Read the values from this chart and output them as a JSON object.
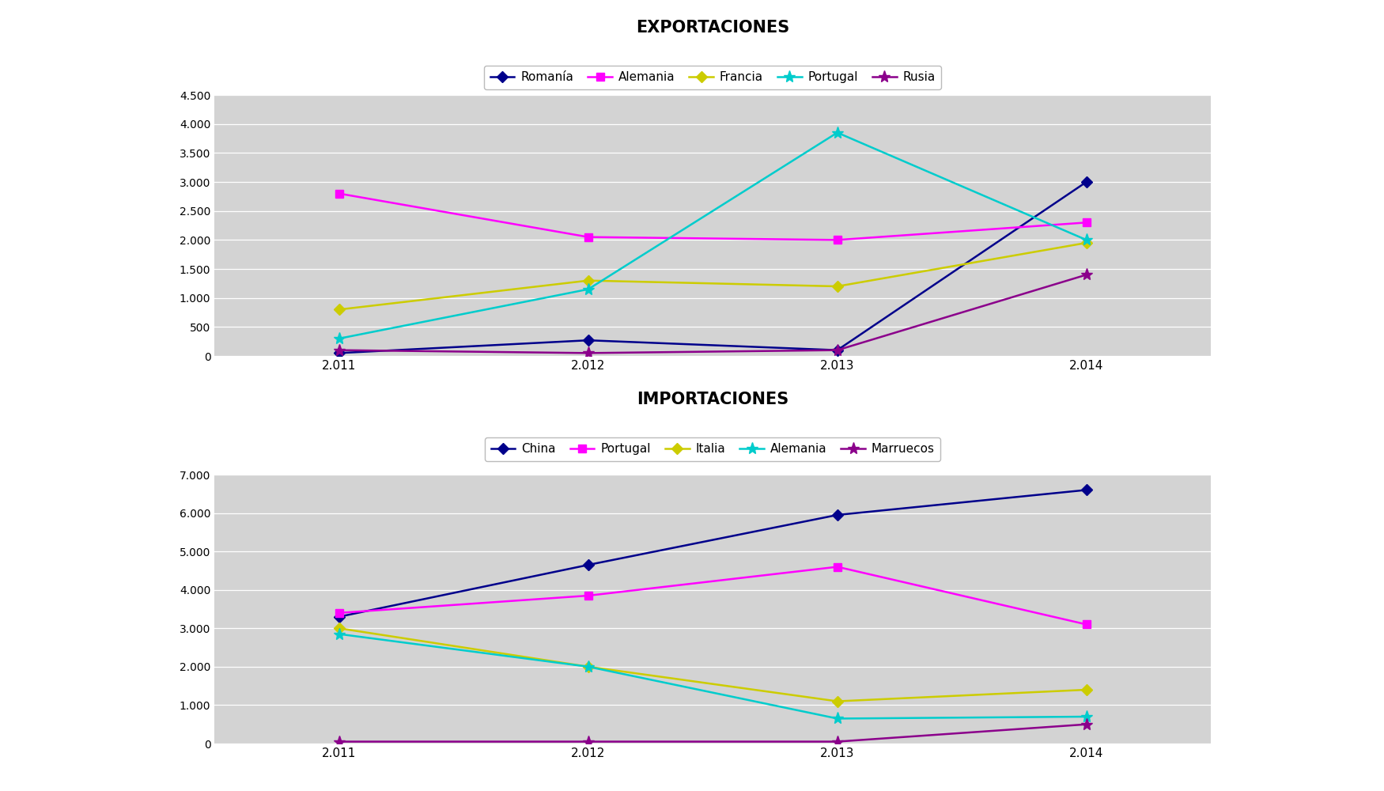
{
  "years": [
    2011,
    2012,
    2013,
    2014
  ],
  "year_labels": [
    "2.011",
    "2.012",
    "2.013",
    "2.014"
  ],
  "export_title": "EXPORTACIONES",
  "import_title": "IMPORTACIONES",
  "export_series": [
    {
      "label": "Romanía",
      "color": "#00008B",
      "marker": "D",
      "values": [
        50,
        270,
        100,
        3000
      ]
    },
    {
      "label": "Alemania",
      "color": "#FF00FF",
      "marker": "s",
      "values": [
        2800,
        2050,
        2000,
        2300
      ]
    },
    {
      "label": "Francia",
      "color": "#CCCC00",
      "marker": "D",
      "values": [
        800,
        1300,
        1200,
        1950
      ]
    },
    {
      "label": "Portugal",
      "color": "#00CCCC",
      "marker": "*",
      "values": [
        300,
        1150,
        3850,
        2000
      ]
    },
    {
      "label": "Rusia",
      "color": "#8B008B",
      "marker": "*",
      "values": [
        100,
        50,
        100,
        1400
      ]
    }
  ],
  "export_ylim": [
    0,
    4500
  ],
  "export_yticks": [
    0,
    500,
    1000,
    1500,
    2000,
    2500,
    3000,
    3500,
    4000,
    4500
  ],
  "import_series": [
    {
      "label": "China",
      "color": "#00008B",
      "marker": "D",
      "values": [
        3300,
        4650,
        5950,
        6600
      ]
    },
    {
      "label": "Portugal",
      "color": "#FF00FF",
      "marker": "s",
      "values": [
        3400,
        3850,
        4600,
        3100
      ]
    },
    {
      "label": "Italia",
      "color": "#CCCC00",
      "marker": "D",
      "values": [
        3000,
        2000,
        1100,
        1400
      ]
    },
    {
      "label": "Alemania",
      "color": "#00CCCC",
      "marker": "*",
      "values": [
        2850,
        2000,
        650,
        700
      ]
    },
    {
      "label": "Marruecos",
      "color": "#8B008B",
      "marker": "*",
      "values": [
        50,
        50,
        50,
        500
      ]
    }
  ],
  "import_ylim": [
    0,
    7000
  ],
  "import_yticks": [
    0,
    1000,
    2000,
    3000,
    4000,
    5000,
    6000,
    7000
  ],
  "background_color": "#ffffff",
  "plot_bg_color": "#D3D3D3",
  "legend_box_color": "#ffffff",
  "legend_box_edge": "#AAAAAA"
}
